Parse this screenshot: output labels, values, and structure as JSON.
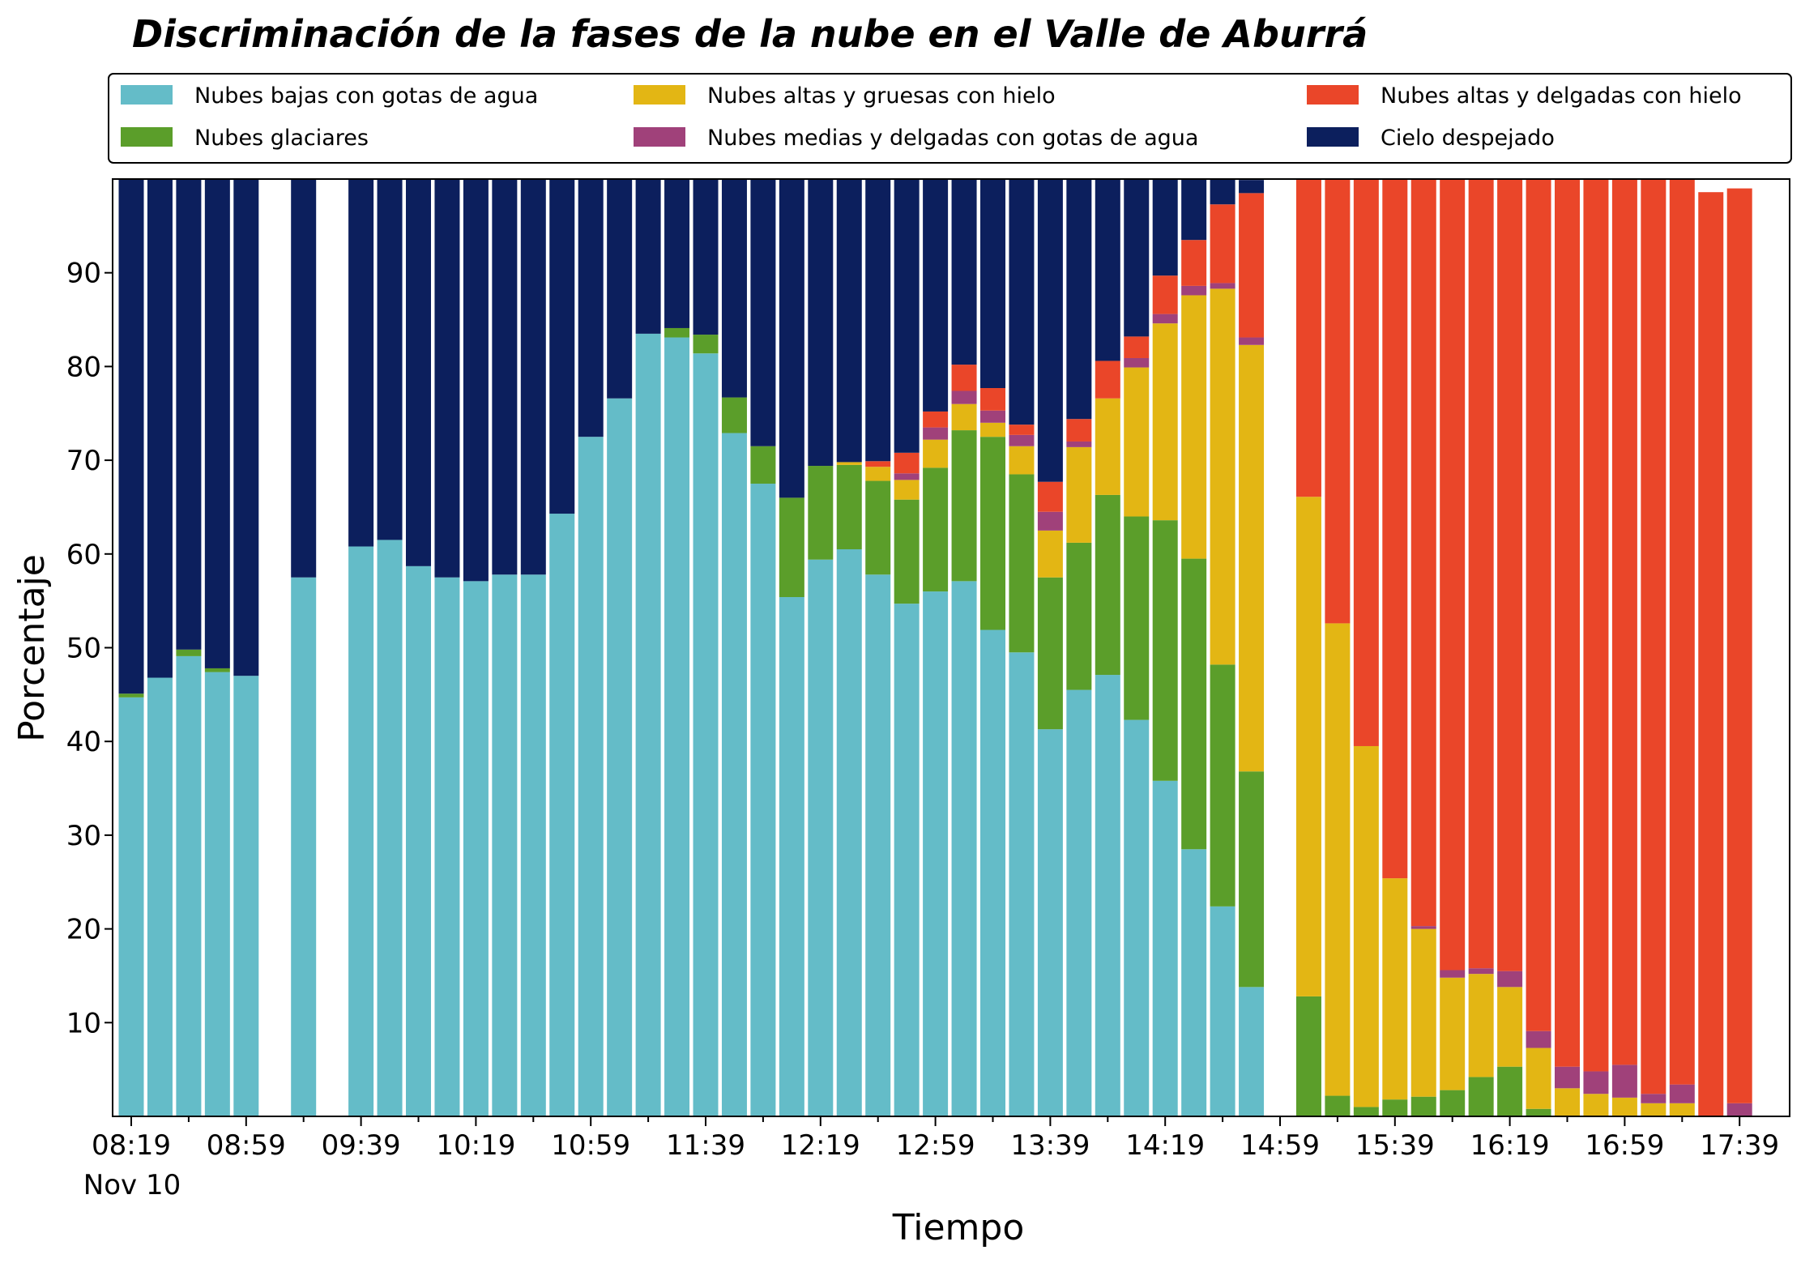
{
  "chart_data": {
    "type": "bar",
    "stacked": true,
    "title": "Discriminación de la fases de la nube en el Valle de Aburrá",
    "xlabel": "Tiempo",
    "ylabel": "Porcentaje",
    "ylim": [
      0,
      100
    ],
    "y_ticks": [
      10,
      20,
      30,
      40,
      50,
      60,
      70,
      80,
      90
    ],
    "x_ticks": [
      "08:19",
      "08:59",
      "09:39",
      "10:19",
      "10:59",
      "11:39",
      "12:19",
      "12:59",
      "13:39",
      "14:19",
      "14:59",
      "15:39",
      "16:19",
      "16:59",
      "17:39"
    ],
    "x_date_label": "Nov 10",
    "legend_position": "top",
    "legend_columns": 3,
    "categories": [
      "08:19",
      "08:29",
      "08:39",
      "08:49",
      "08:59",
      "09:09",
      "09:19",
      "09:29",
      "09:39",
      "09:49",
      "09:59",
      "10:09",
      "10:19",
      "10:29",
      "10:39",
      "10:49",
      "10:59",
      "11:09",
      "11:19",
      "11:29",
      "11:39",
      "11:49",
      "11:59",
      "12:09",
      "12:19",
      "12:29",
      "12:39",
      "12:49",
      "12:59",
      "13:09",
      "13:19",
      "13:29",
      "13:39",
      "13:49",
      "13:59",
      "14:09",
      "14:19",
      "14:29",
      "14:39",
      "14:49",
      "14:59",
      "15:09",
      "15:19",
      "15:29",
      "15:39",
      "15:49",
      "15:59",
      "16:09",
      "16:19",
      "16:29",
      "16:39",
      "16:49",
      "16:59",
      "17:09",
      "17:19",
      "17:29",
      "17:39"
    ],
    "series": [
      {
        "name": "Nubes bajas con gotas de agua",
        "color": "#64bcc8",
        "values": [
          44.7,
          46.8,
          49.1,
          47.4,
          47.0,
          null,
          57.5,
          null,
          60.8,
          61.5,
          58.7,
          57.5,
          57.1,
          57.8,
          57.8,
          64.3,
          72.5,
          76.6,
          83.5,
          83.1,
          81.4,
          72.9,
          67.5,
          55.4,
          59.4,
          60.5,
          57.8,
          54.7,
          56.0,
          57.1,
          51.9,
          49.5,
          41.3,
          45.5,
          47.1,
          42.3,
          35.8,
          28.5,
          22.4,
          13.8,
          null,
          0,
          0,
          0,
          0,
          0,
          0,
          0,
          0,
          0,
          0,
          0,
          0,
          0,
          0,
          0,
          0
        ]
      },
      {
        "name": "Nubes glaciares",
        "color": "#5b9e2a",
        "values": [
          0.4,
          0,
          0.7,
          0.4,
          0,
          null,
          0,
          null,
          0,
          0,
          0,
          0,
          0,
          0,
          0,
          0,
          0,
          0,
          0,
          1.0,
          2.0,
          3.8,
          4.0,
          10.6,
          10.0,
          9.0,
          10.0,
          11.1,
          13.2,
          16.1,
          20.6,
          19.0,
          16.2,
          15.7,
          19.2,
          21.7,
          27.8,
          31.0,
          25.8,
          23.0,
          null,
          12.8,
          2.2,
          1.0,
          1.8,
          2.1,
          2.8,
          4.2,
          5.3,
          0.8,
          0,
          0,
          0,
          0,
          0,
          0,
          0
        ]
      },
      {
        "name": "Nubes altas y gruesas con hielo",
        "color": "#e3b614",
        "values": [
          0,
          0,
          0,
          0,
          0,
          null,
          0,
          null,
          0,
          0,
          0,
          0,
          0,
          0,
          0,
          0,
          0,
          0,
          0,
          0,
          0,
          0,
          0,
          0,
          0,
          0.3,
          1.5,
          2.1,
          3.0,
          2.8,
          1.5,
          3.0,
          5.0,
          10.2,
          10.3,
          15.9,
          21.0,
          28.1,
          40.1,
          45.5,
          null,
          53.3,
          50.4,
          38.5,
          23.6,
          17.9,
          12.0,
          11.0,
          8.5,
          6.5,
          3.0,
          2.4,
          2.0,
          1.4,
          1.4,
          0,
          0
        ]
      },
      {
        "name": "Nubes medias y delgadas con gotas de agua",
        "color": "#a0417a",
        "values": [
          0,
          0,
          0,
          0,
          0,
          null,
          0,
          null,
          0,
          0,
          0,
          0,
          0,
          0,
          0,
          0,
          0,
          0,
          0,
          0,
          0,
          0,
          0,
          0,
          0,
          0,
          0,
          0.7,
          1.3,
          1.4,
          1.3,
          1.2,
          2.0,
          0.6,
          0,
          1.0,
          1.0,
          1.0,
          0.6,
          0.8,
          null,
          0,
          0,
          0,
          0,
          0.3,
          0.8,
          0.6,
          1.7,
          1.8,
          2.3,
          2.4,
          3.5,
          1.0,
          2.0,
          0,
          1.4
        ]
      },
      {
        "name": "Nubes altas y delgadas con hielo",
        "color": "#ea4629",
        "values": [
          0,
          0,
          0,
          0,
          0,
          null,
          0,
          null,
          0,
          0,
          0,
          0,
          0,
          0,
          0,
          0,
          0,
          0,
          0,
          0,
          0,
          0,
          0,
          0,
          0,
          0,
          0.6,
          2.2,
          1.7,
          2.8,
          2.4,
          1.1,
          3.2,
          2.4,
          4.0,
          2.3,
          4.1,
          4.9,
          8.4,
          15.4,
          null,
          33.9,
          47.4,
          60.5,
          74.6,
          79.7,
          84.4,
          84.2,
          84.5,
          90.9,
          94.7,
          95.2,
          94.5,
          97.6,
          96.6,
          98.6,
          97.6
        ]
      },
      {
        "name": "Cielo despejado",
        "color": "#0c1f5d",
        "values": [
          54.9,
          53.2,
          50.2,
          52.2,
          53.0,
          null,
          42.5,
          null,
          39.2,
          38.5,
          41.3,
          42.5,
          42.9,
          42.2,
          42.2,
          35.7,
          27.5,
          23.4,
          16.5,
          15.9,
          16.6,
          23.3,
          28.5,
          34.0,
          30.6,
          30.2,
          30.1,
          29.2,
          24.8,
          19.8,
          22.3,
          26.2,
          32.3,
          25.6,
          19.4,
          16.8,
          10.3,
          6.5,
          2.7,
          1.4,
          null,
          0,
          0,
          0,
          0,
          0,
          0,
          0,
          0,
          0,
          0,
          0,
          0,
          0,
          0,
          0,
          0
        ]
      }
    ]
  }
}
